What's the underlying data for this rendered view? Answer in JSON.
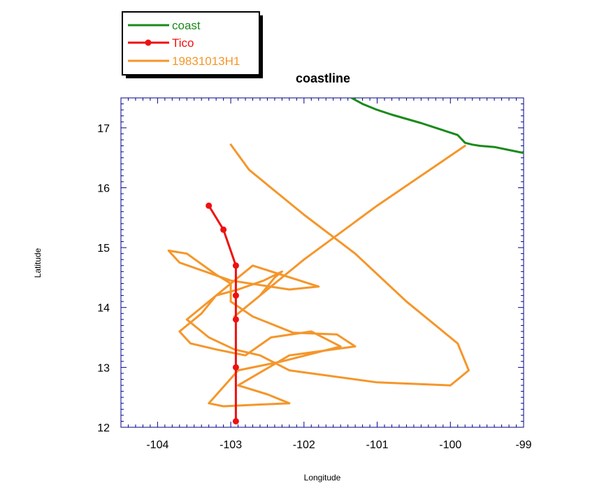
{
  "chart_data": {
    "type": "line",
    "title": "coastline",
    "xlabel": "Longitude",
    "ylabel": "Latitude",
    "xlim": [
      -104.5,
      -99
    ],
    "ylim": [
      12,
      17.5
    ],
    "xticks": [
      -104,
      -103,
      -102,
      -101,
      -100,
      -99
    ],
    "yticks": [
      12,
      13,
      14,
      15,
      16,
      17
    ],
    "xtick_labels": [
      "-104",
      "-103",
      "-102",
      "-101",
      "-100",
      "-99"
    ],
    "ytick_labels": [
      "12",
      "13",
      "14",
      "15",
      "16",
      "17"
    ],
    "grid": false,
    "legend_position": "top-left outside",
    "series": [
      {
        "name": "coast",
        "color": "#1a8a1a",
        "markers": false,
        "x": [
          -101.35,
          -101.2,
          -101.0,
          -100.8,
          -100.6,
          -100.4,
          -100.2,
          -100.0,
          -99.9,
          -99.8,
          -99.7,
          -99.6,
          -99.4,
          -99.2,
          -99.0
        ],
        "y": [
          17.5,
          17.4,
          17.3,
          17.22,
          17.15,
          17.08,
          17.0,
          16.92,
          16.88,
          16.75,
          16.72,
          16.7,
          16.68,
          16.63,
          16.58
        ]
      },
      {
        "name": "Tico",
        "color": "#ee1111",
        "markers": true,
        "x": [
          -103.3,
          -103.1,
          -102.93,
          -102.93,
          -102.93,
          -102.93,
          -102.93
        ],
        "y": [
          15.7,
          15.3,
          14.7,
          14.2,
          13.8,
          13.0,
          12.1
        ]
      },
      {
        "name": "19831013H1",
        "color": "#f5962a",
        "markers": false,
        "x": [
          -99.8,
          -101.0,
          -102.0,
          -102.95,
          -102.6,
          -102.4,
          -102.3,
          -102.55,
          -102.9,
          -103.2,
          -103.4,
          -103.7,
          -103.55,
          -103.2,
          -102.8,
          -102.45,
          -101.9,
          -101.5,
          -102.3,
          -102.9,
          -103.3,
          -103.1,
          -102.6,
          -102.2,
          -102.5,
          -102.9,
          -102.2,
          -101.3,
          -101.55,
          -102.15,
          -102.7,
          -103.0,
          -103.0,
          -103.2,
          -103.6,
          -103.85,
          -103.7,
          -103.0,
          -102.2,
          -101.8,
          -102.7,
          -103.6,
          -103.3,
          -102.95,
          -102.6,
          -102.2,
          -101.0,
          -100.0,
          -99.75,
          -99.9,
          -100.6,
          -101.3,
          -102.0,
          -102.75,
          -103.0
        ]
      },
      {
        "name": "19831013H1",
        "color": "#f5962a",
        "markers": false,
        "x": [
          -99.8,
          -101.0,
          -102.0,
          -102.95,
          -102.6,
          -102.4,
          -102.3,
          -102.55,
          -102.9,
          -103.2,
          -103.4,
          -103.7,
          -103.55,
          -103.2,
          -102.8,
          -102.45,
          -101.9,
          -101.5,
          -102.3,
          -102.9,
          -103.3,
          -103.1,
          -102.6,
          -102.2,
          -102.5,
          -102.9,
          -102.2,
          -101.3,
          -101.55,
          -102.15,
          -102.7,
          -103.0,
          -103.0,
          -103.2,
          -103.6,
          -103.85,
          -103.7,
          -103.0,
          -102.2,
          -101.8,
          -102.7,
          -103.6,
          -103.3,
          -102.95,
          -102.6,
          -102.2,
          -101.0,
          -100.0,
          -99.75,
          -99.9,
          -100.6,
          -101.3,
          -102.0,
          -102.75,
          -103.0
        ],
        "y": [
          16.7,
          15.7,
          14.8,
          13.85,
          14.2,
          14.5,
          14.6,
          14.45,
          14.3,
          14.2,
          13.9,
          13.6,
          13.4,
          13.3,
          13.2,
          13.5,
          13.6,
          13.35,
          13.1,
          12.95,
          12.4,
          12.35,
          12.38,
          12.4,
          12.55,
          12.7,
          13.2,
          13.35,
          13.55,
          13.58,
          13.85,
          14.1,
          14.4,
          14.55,
          14.9,
          14.95,
          14.75,
          14.45,
          14.3,
          14.35,
          14.7,
          13.8,
          13.5,
          13.3,
          13.2,
          12.95,
          12.75,
          12.7,
          12.95,
          13.4,
          14.1,
          14.9,
          15.55,
          16.3,
          16.72
        ]
      }
    ]
  }
}
